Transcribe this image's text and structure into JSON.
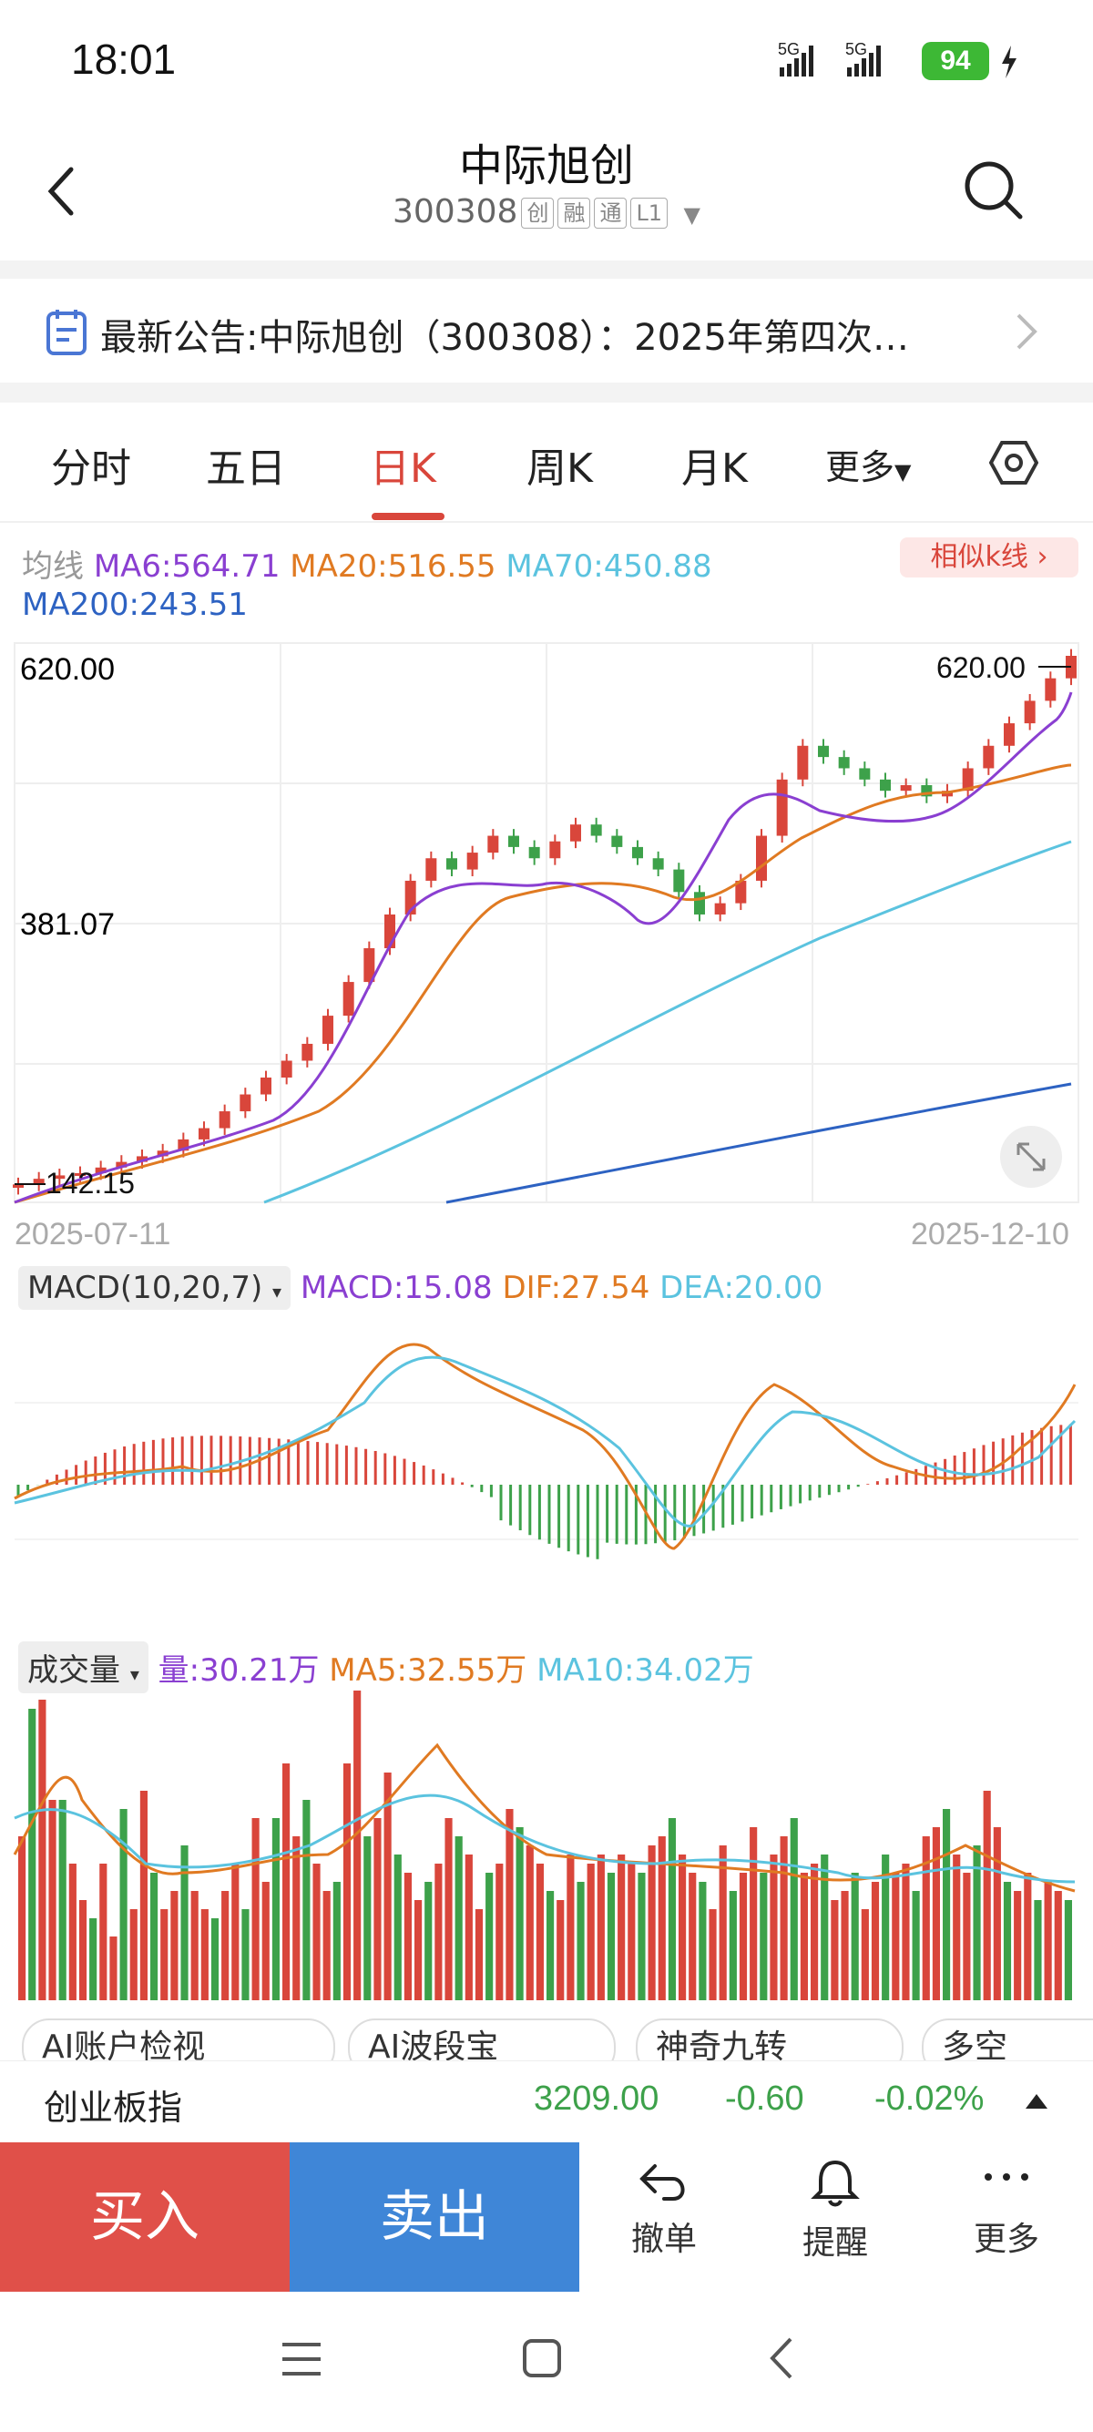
{
  "status": {
    "time": "18:01",
    "signal1": "5G",
    "signal2": "5G",
    "battery": "94"
  },
  "header": {
    "title": "中际旭创",
    "code": "300308",
    "tags": [
      "创",
      "融",
      "通",
      "L1"
    ]
  },
  "notice": {
    "text": "最新公告:中际旭创（300308）：2025年第四次…"
  },
  "tabs": [
    "分时",
    "五日",
    "日K",
    "周K",
    "月K",
    "更多"
  ],
  "active_tab": "日K",
  "ma": {
    "label": "均线",
    "ma6": "MA6:564.71",
    "ma20": "MA20:516.55",
    "ma70": "MA70:450.88",
    "ma200": "MA200:243.51",
    "similar": "相似k线 ›"
  },
  "chart_axes": {
    "top": "620.00",
    "mid": "381.07",
    "low": "142.15",
    "max_marker": "620.00",
    "min_marker": "142.15",
    "date_start": "2025-07-11",
    "date_end": "2025-12-10"
  },
  "macd": {
    "name": "MACD(10,20,7)",
    "macd": "MACD:15.08",
    "dif": "DIF:27.54",
    "dea": "DEA:20.00"
  },
  "volume": {
    "name": "成交量",
    "vol": "量:30.21万",
    "ma5": "MA5:32.55万",
    "ma10": "MA10:34.02万"
  },
  "quick_buttons": [
    "AI账户检视",
    "AI波段宝",
    "神奇九转",
    "多空"
  ],
  "index": {
    "name": "创业板指",
    "value": "3209.00",
    "change": "-0.60",
    "pct": "-0.02%"
  },
  "actions": {
    "buy": "买入",
    "sell": "卖出",
    "cancel": "撤单",
    "alert": "提醒",
    "more": "更多"
  },
  "colors": {
    "up": "#d9463b",
    "down": "#3da14a",
    "ma6": "#8a3fd1",
    "ma20": "#e07a22",
    "ma70": "#5bc3df",
    "ma200": "#2d62c2"
  },
  "chart_data": {
    "type": "candlestick",
    "x_range": [
      "2025-07-11",
      "2025-12-10"
    ],
    "ylim": [
      142.15,
      620.0
    ],
    "close_approx": [
      150,
      155,
      158,
      160,
      165,
      170,
      175,
      180,
      190,
      200,
      215,
      230,
      245,
      260,
      275,
      300,
      330,
      360,
      390,
      420,
      440,
      430,
      445,
      460,
      450,
      440,
      455,
      470,
      460,
      450,
      440,
      430,
      410,
      390,
      400,
      420,
      460,
      510,
      540,
      530,
      520,
      510,
      500,
      505,
      495,
      500,
      520,
      540,
      560,
      580,
      600,
      620
    ],
    "ma70_end": 450.88,
    "ma200_end": 243.51
  }
}
